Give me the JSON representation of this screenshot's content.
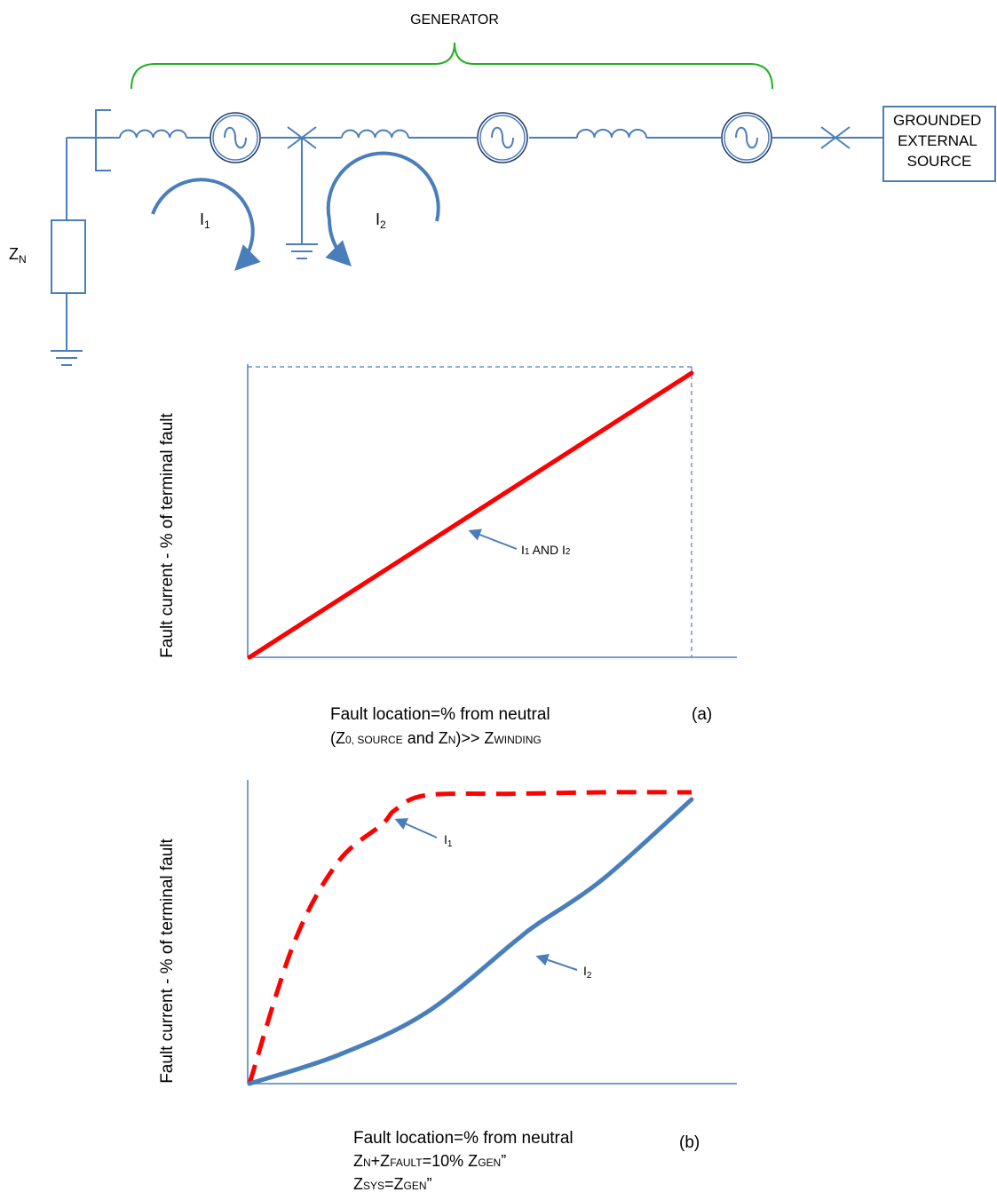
{
  "circuit": {
    "generator_label": "GENERATOR",
    "external_source_lines": [
      "GROUNDED",
      "EXTERNAL",
      "SOURCE"
    ],
    "zn": {
      "main": "Z",
      "sub": "N"
    },
    "i1": {
      "main": "I",
      "sub": "1"
    },
    "i2": {
      "main": "I",
      "sub": "2"
    },
    "wire_color": "#4a7ebb",
    "bracket_color": "#21b021"
  },
  "chart_a": {
    "type": "line",
    "ylabel": "Fault current - % of terminal fault",
    "xlabel": "Fault location=% from neutral",
    "tag": "(a)",
    "note": {
      "p1": "(Z",
      "s1": "0, SOURCE",
      "p2": " and Z",
      "s2": "N",
      "p3": ")>> Z",
      "s3": "WINDING"
    },
    "annotation": {
      "p1": "I",
      "s1": "1",
      "p2": " AND I",
      "s2": "2"
    },
    "line_color": "#ff0000"
  },
  "chart_b": {
    "type": "line",
    "ylabel": "Fault current - % of terminal fault",
    "xlabel": "Fault location=% from neutral",
    "tag": "(b)",
    "note1": {
      "p1": "Z",
      "s1": "N",
      "p2": "+Z",
      "s2": "FAULT",
      "p3": "=10% Z",
      "s3": "GEN",
      "p4": "”"
    },
    "note2": {
      "p1": "Z",
      "s1": "SYS",
      "p2": "=Z",
      "s2": "GEN",
      "p3": "”"
    },
    "i1_label": {
      "main": "I",
      "sub": "1"
    },
    "i2_label": {
      "main": "I",
      "sub": "2"
    },
    "i1_color": "#ff0000",
    "i2_color": "#4a7ebb"
  },
  "chart_data": [
    {
      "type": "line",
      "title": "",
      "xlabel": "Fault location=% from neutral",
      "ylabel": "Fault current - % of terminal fault",
      "series": [
        {
          "name": "I1 AND I2",
          "x": [
            0,
            100
          ],
          "y": [
            0,
            100
          ]
        }
      ]
    },
    {
      "type": "line",
      "title": "",
      "xlabel": "Fault location=% from neutral",
      "ylabel": "Fault current - % of terminal fault",
      "series": [
        {
          "name": "I1",
          "x": [
            0,
            10,
            20,
            30,
            33,
            40,
            60,
            80,
            100
          ],
          "y": [
            0,
            48,
            76,
            89,
            94,
            99,
            99.5,
            100,
            100
          ]
        },
        {
          "name": "I2",
          "x": [
            0,
            20,
            40,
            60,
            65,
            80,
            100
          ],
          "y": [
            0,
            10,
            25,
            50,
            56,
            72,
            100
          ]
        }
      ]
    }
  ]
}
